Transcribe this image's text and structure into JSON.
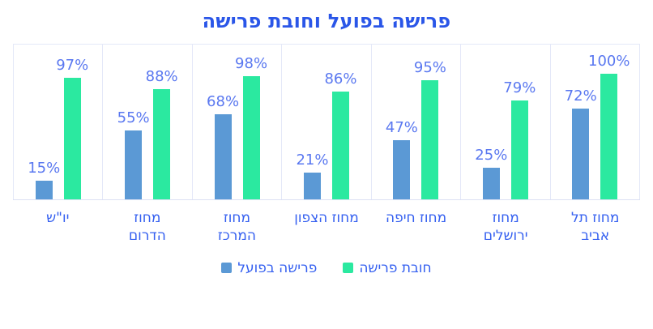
{
  "title": "פרישה בפועל וחובת פרישה",
  "colors": {
    "title": "#2a56e8",
    "data_label": "#5a78f0",
    "axis_label": "#3560f0",
    "legend_label": "#3560f0",
    "actual_bar": "#5b99d5",
    "mandatory_bar": "#2be9a0",
    "panel_border": "#e4e8f8",
    "axis_line": "#dce1f4"
  },
  "legend": {
    "items": [
      {
        "label": "פרישה בפועל",
        "series": "actual",
        "color": "#5b99d5"
      },
      {
        "label": "חובת פרישה",
        "series": "mandatory",
        "color": "#2be9a0"
      }
    ]
  },
  "chart_data": {
    "type": "bar",
    "title": "פרישה בפועל וחובת פרישה",
    "direction": "rtl",
    "categories": [
      "יו\"ש",
      "מחוז הדרום",
      "מחוז המרכז",
      "מחוז הצפון",
      "מחוז חיפה",
      "מחוז ירושלים",
      "מחוז תל אביב"
    ],
    "category_lines": [
      [
        "יו\"ש"
      ],
      [
        "מחוז",
        "הדרום"
      ],
      [
        "מחוז",
        "המרכז"
      ],
      [
        "מחוז הצפון"
      ],
      [
        "מחוז חיפה"
      ],
      [
        "מחוז",
        "ירושלים"
      ],
      [
        "מחוז תל",
        "אביב"
      ]
    ],
    "series": [
      {
        "name": "פרישה בפועל",
        "values": [
          15,
          55,
          68,
          21,
          47,
          25,
          72
        ],
        "unit": "%"
      },
      {
        "name": "חובת פרישה",
        "values": [
          97,
          88,
          98,
          86,
          95,
          79,
          100
        ],
        "unit": "%"
      }
    ],
    "value_labels": true,
    "ylim": [
      0,
      100
    ],
    "grid": false,
    "legend_position": "bottom"
  }
}
